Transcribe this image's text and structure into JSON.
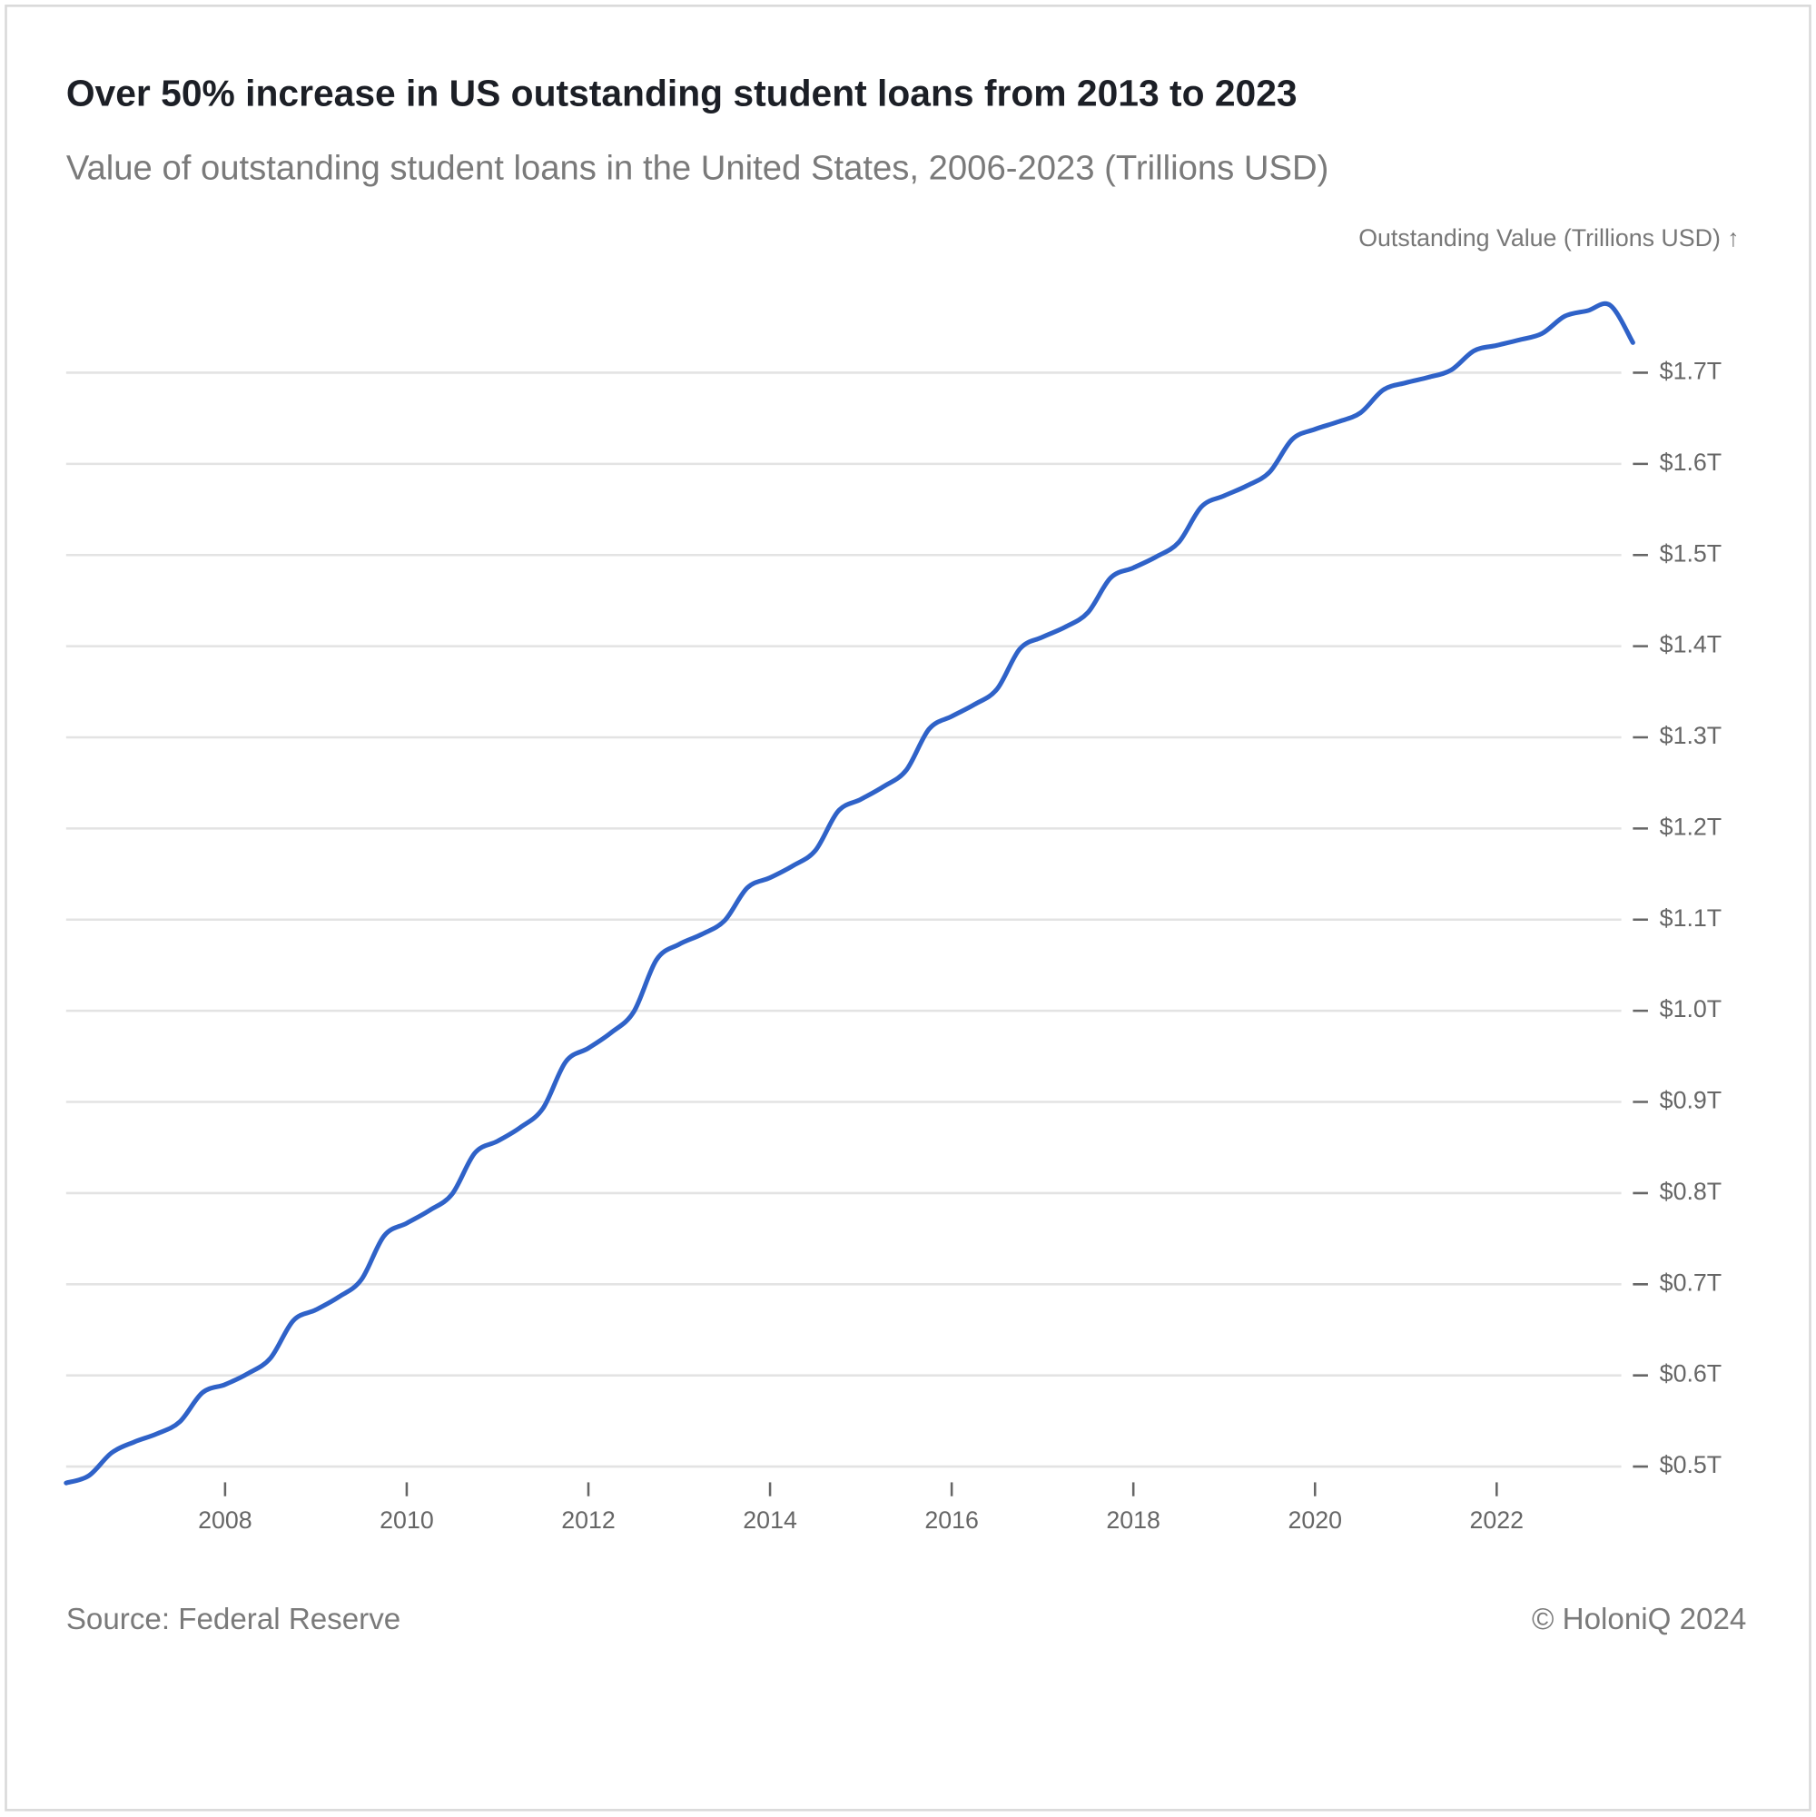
{
  "chart_data": {
    "type": "line",
    "title": "Over 50% increase in US outstanding student loans from 2013 to 2023",
    "subtitle": "Value of outstanding student loans in the United States, 2006-2023 (Trillions USD)",
    "y_label": "Outstanding Value (Trillions USD) ↑",
    "source": "Source: Federal Reserve",
    "credit": "© HoloniQ 2024",
    "x": [
      2006.25,
      2006.5,
      2006.75,
      2007,
      2007.25,
      2007.5,
      2007.75,
      2008,
      2008.25,
      2008.5,
      2008.75,
      2009,
      2009.25,
      2009.5,
      2009.75,
      2010,
      2010.25,
      2010.5,
      2010.75,
      2011,
      2011.25,
      2011.5,
      2011.75,
      2012,
      2012.25,
      2012.5,
      2012.75,
      2013,
      2013.25,
      2013.5,
      2013.75,
      2014,
      2014.25,
      2014.5,
      2014.75,
      2015,
      2015.25,
      2015.5,
      2015.75,
      2016,
      2016.25,
      2016.5,
      2016.75,
      2017,
      2017.25,
      2017.5,
      2017.75,
      2018,
      2018.25,
      2018.5,
      2018.75,
      2019,
      2019.25,
      2019.5,
      2019.75,
      2020,
      2020.25,
      2020.5,
      2020.75,
      2021,
      2021.25,
      2021.5,
      2021.75,
      2022,
      2022.25,
      2022.5,
      2022.75,
      2023,
      2023.25,
      2023.5
    ],
    "series": [
      {
        "name": "Outstanding Value",
        "color": "#2f62c8",
        "values": [
          0.482,
          0.49,
          0.515,
          0.527,
          0.536,
          0.549,
          0.581,
          0.59,
          0.602,
          0.619,
          0.66,
          0.672,
          0.686,
          0.705,
          0.753,
          0.767,
          0.781,
          0.799,
          0.844,
          0.857,
          0.872,
          0.893,
          0.944,
          0.959,
          0.976,
          0.999,
          1.056,
          1.073,
          1.084,
          1.099,
          1.135,
          1.146,
          1.159,
          1.176,
          1.219,
          1.232,
          1.246,
          1.264,
          1.309,
          1.323,
          1.336,
          1.353,
          1.397,
          1.41,
          1.421,
          1.437,
          1.475,
          1.486,
          1.498,
          1.514,
          1.553,
          1.565,
          1.576,
          1.591,
          1.627,
          1.638,
          1.646,
          1.656,
          1.681,
          1.689,
          1.695,
          1.703,
          1.724,
          1.73,
          1.736,
          1.743,
          1.762,
          1.768,
          1.774,
          1.733
        ]
      }
    ],
    "xlim": [
      2006.25,
      2023.5
    ],
    "xticks": [
      2008,
      2010,
      2012,
      2014,
      2016,
      2018,
      2020,
      2022
    ],
    "ylim": [
      0.47,
      1.79
    ],
    "yticks": [
      {
        "value": 0.5,
        "label": "$0.5T"
      },
      {
        "value": 0.6,
        "label": "$0.6T"
      },
      {
        "value": 0.7,
        "label": "$0.7T"
      },
      {
        "value": 0.8,
        "label": "$0.8T"
      },
      {
        "value": 0.9,
        "label": "$0.9T"
      },
      {
        "value": 1.0,
        "label": "$1.0T"
      },
      {
        "value": 1.1,
        "label": "$1.1T"
      },
      {
        "value": 1.2,
        "label": "$1.2T"
      },
      {
        "value": 1.3,
        "label": "$1.3T"
      },
      {
        "value": 1.4,
        "label": "$1.4T"
      },
      {
        "value": 1.5,
        "label": "$1.5T"
      },
      {
        "value": 1.6,
        "label": "$1.6T"
      },
      {
        "value": 1.7,
        "label": "$1.7T"
      }
    ],
    "grid": true
  }
}
